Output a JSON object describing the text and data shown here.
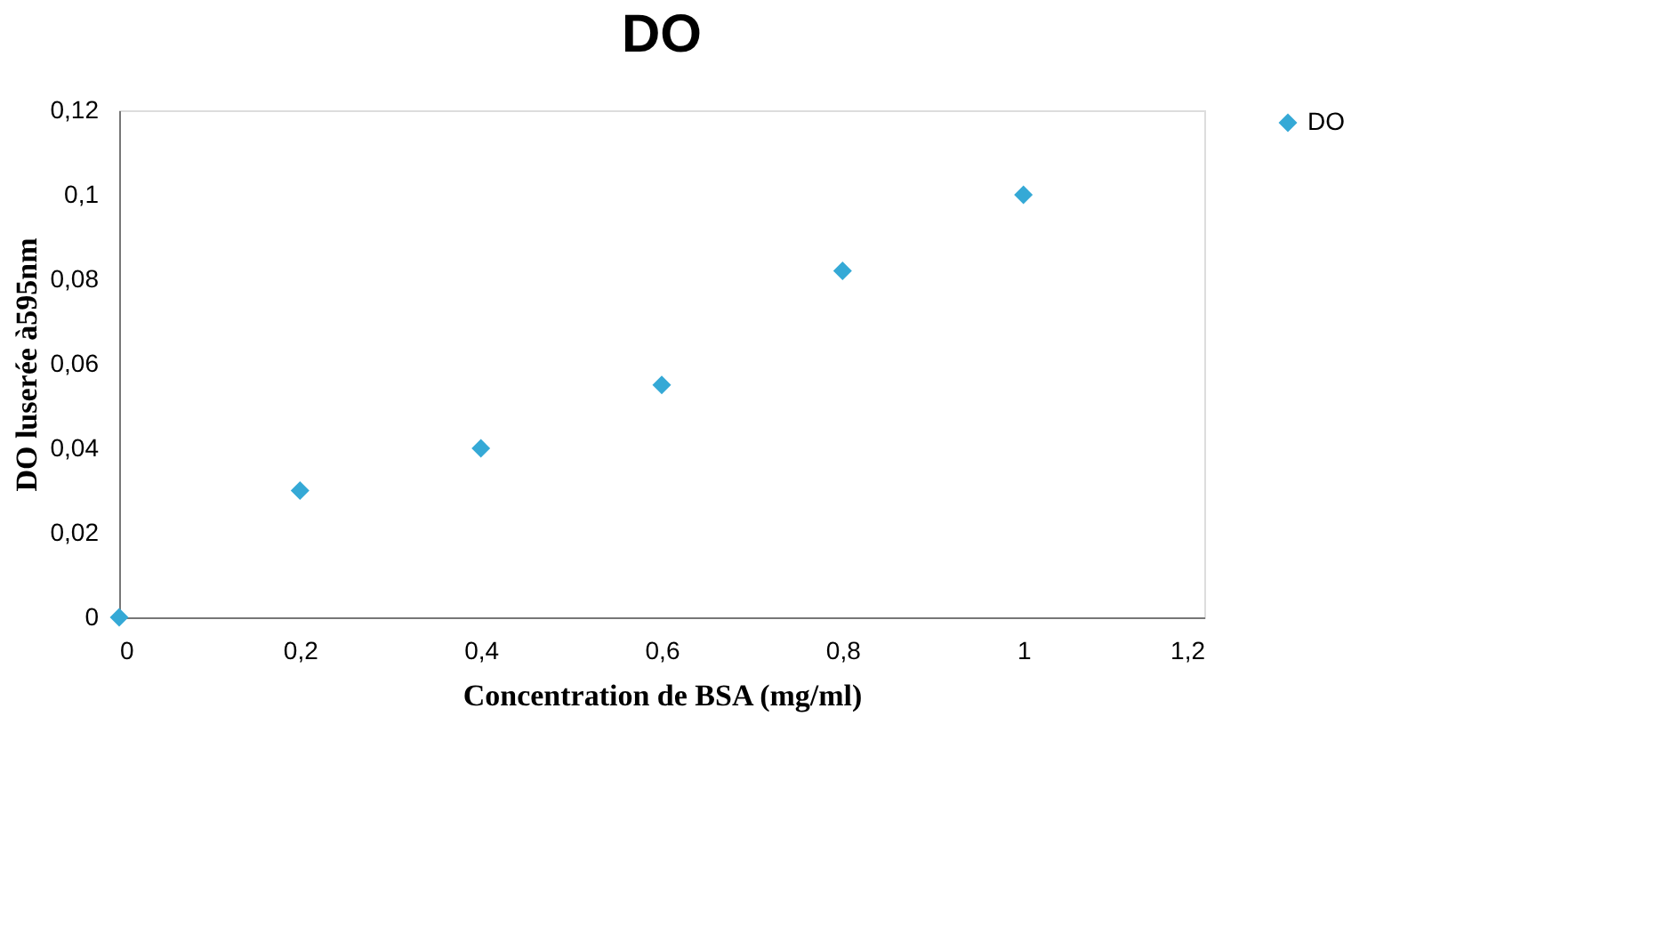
{
  "chart_data": {
    "type": "scatter",
    "title": "DO",
    "xlabel": "Concentration de BSA (mg/ml)",
    "ylabel": "DO luserée à595nm",
    "x": [
      0,
      0.2,
      0.4,
      0.6,
      0.8,
      1
    ],
    "series": [
      {
        "name": "DO",
        "color": "#35a9d6",
        "values": [
          0,
          0.03,
          0.04,
          0.055,
          0.082,
          0.1
        ]
      }
    ],
    "xlim": [
      0,
      1.2
    ],
    "xticks": [
      0,
      {
        "value": 0.2,
        "label": "0,2"
      },
      {
        "value": 0.4,
        "label": "0,4"
      },
      {
        "value": 0.6,
        "label": "0,6"
      },
      {
        "value": 0.8,
        "label": "0,8"
      },
      1,
      {
        "value": 1.2,
        "label": "1,2"
      }
    ],
    "ylim": [
      0,
      0.12
    ],
    "yticks": [
      0,
      {
        "value": 0.02,
        "label": "0,02"
      },
      {
        "value": 0.04,
        "label": "0,04"
      },
      {
        "value": 0.06,
        "label": "0,06"
      },
      {
        "value": 0.08,
        "label": "0,08"
      },
      {
        "value": 0.1,
        "label": "0,1"
      },
      {
        "value": 0.12,
        "label": "0,12"
      }
    ],
    "grid": false,
    "legend": "right",
    "marker": "diamond"
  }
}
